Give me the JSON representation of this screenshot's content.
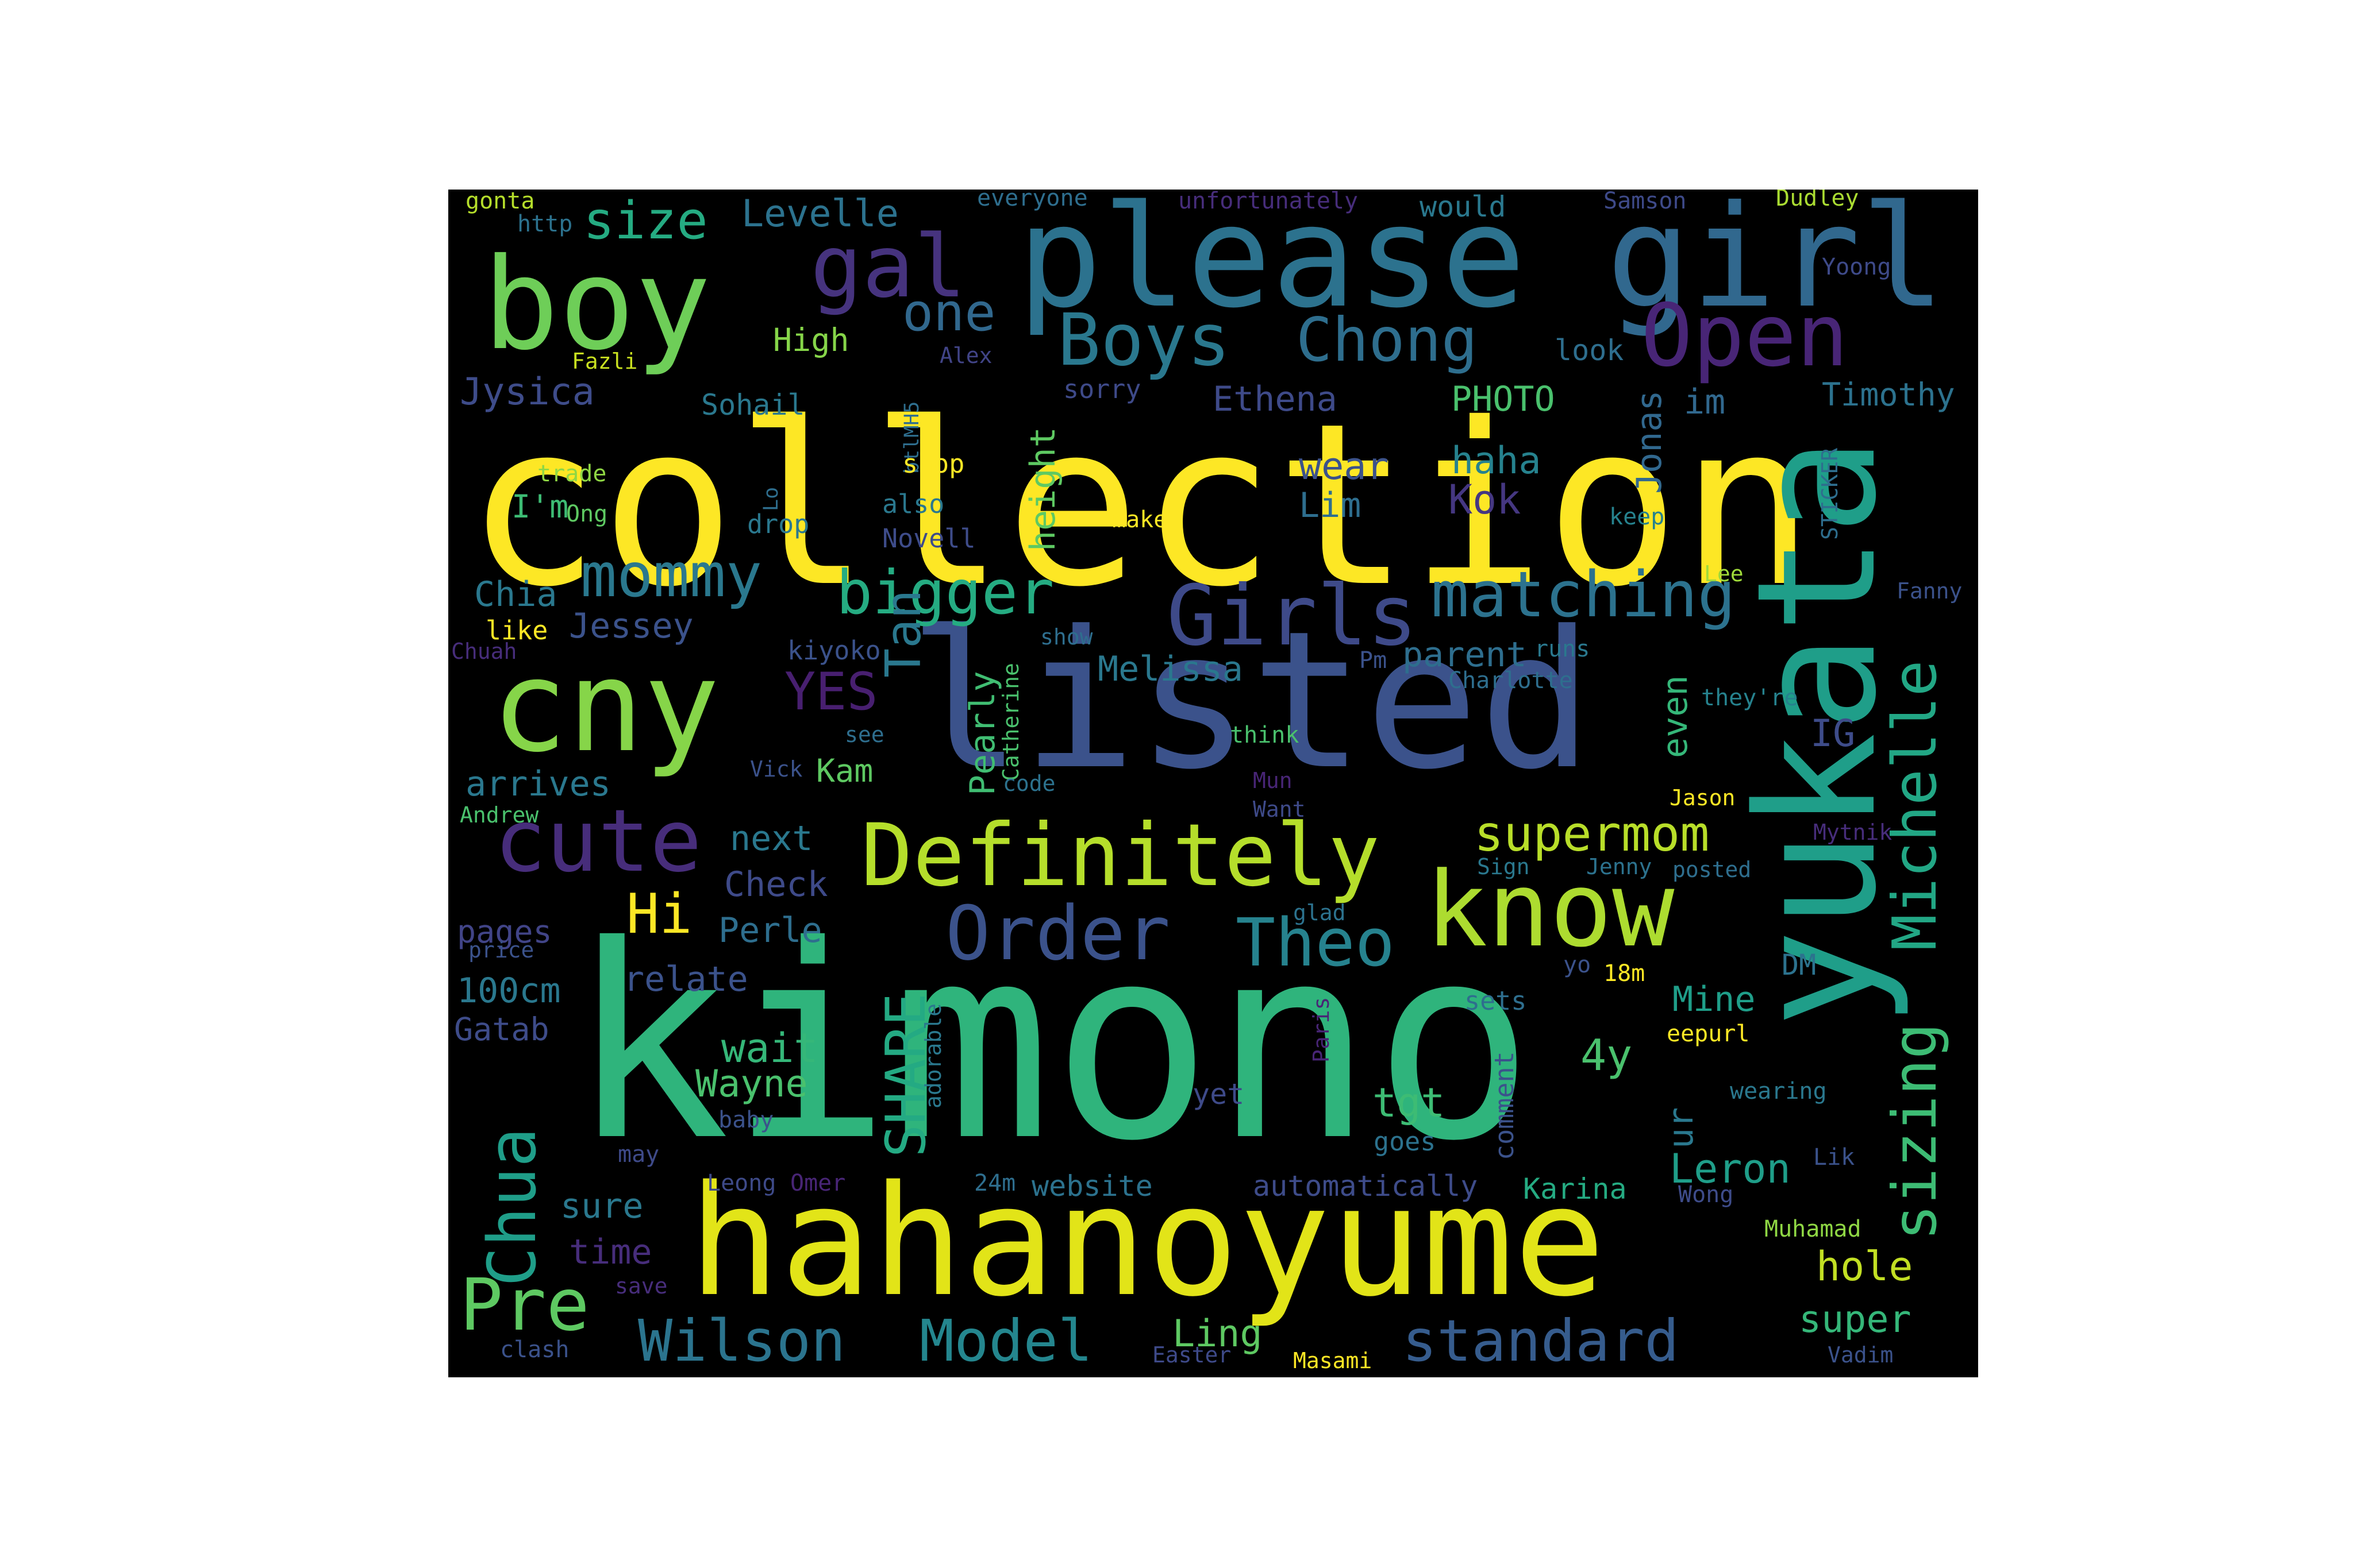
{
  "words": [
    {
      "text": "kimono",
      "color": "#2fb47c"
    },
    {
      "text": "collection",
      "color": "#fde725"
    },
    {
      "text": "listed",
      "color": "#3b528b"
    },
    {
      "text": "yukata",
      "color": "#1f9e89"
    },
    {
      "text": "hahanoyume",
      "color": "#e2e418"
    },
    {
      "text": "please",
      "color": "#2c728e"
    },
    {
      "text": "girl",
      "color": "#31688e"
    },
    {
      "text": "boy",
      "color": "#6ece58"
    },
    {
      "text": "cny",
      "color": "#86d549"
    },
    {
      "text": "know",
      "color": "#addc30"
    },
    {
      "text": "Definitely",
      "color": "#b5de2b"
    },
    {
      "text": "cute",
      "color": "#472d7b"
    },
    {
      "text": "Girls",
      "color": "#3e4a89"
    },
    {
      "text": "Open",
      "color": "#482576"
    },
    {
      "text": "gal",
      "color": "#46337e"
    },
    {
      "text": "Boys",
      "color": "#2a788e"
    },
    {
      "text": "Chong",
      "color": "#2e6e8e"
    },
    {
      "text": "Order",
      "color": "#3b528b"
    },
    {
      "text": "Theo",
      "color": "#26828e"
    },
    {
      "text": "Michelle",
      "color": "#22a785"
    },
    {
      "text": "sizing",
      "color": "#3dbc74"
    },
    {
      "text": "matching",
      "color": "#2c728e"
    },
    {
      "text": "mommy",
      "color": "#2a788e"
    },
    {
      "text": "bigger",
      "color": "#25ac82"
    },
    {
      "text": "Chua",
      "color": "#1f9e89"
    },
    {
      "text": "SHARE",
      "color": "#24aa83"
    },
    {
      "text": "Pre",
      "color": "#5ec962"
    },
    {
      "text": "Wilson",
      "color": "#2b748e"
    },
    {
      "text": "Model",
      "color": "#24868e"
    },
    {
      "text": "standard",
      "color": "#365c8d"
    },
    {
      "text": "supermom",
      "color": "#b8de29"
    },
    {
      "text": "Tan",
      "color": "#2a788e"
    },
    {
      "text": "one",
      "color": "#31688e"
    },
    {
      "text": "size",
      "color": "#25ab82"
    },
    {
      "text": "Levelle",
      "color": "#2c728e"
    },
    {
      "text": "YES",
      "color": "#481f70"
    },
    {
      "text": "Hi",
      "color": "#fde725"
    },
    {
      "text": "height",
      "color": "#5ec962"
    },
    {
      "text": "Pearly",
      "color": "#40bd72"
    },
    {
      "text": "Jonas",
      "color": "#31688e"
    },
    {
      "text": "even",
      "color": "#35b779"
    },
    {
      "text": "IG",
      "color": "#3e4c8a"
    },
    {
      "text": "4y",
      "color": "#4ac16d"
    },
    {
      "text": "ur",
      "color": "#2a788e"
    },
    {
      "text": "Leron",
      "color": "#1f9e89"
    },
    {
      "text": "hole",
      "color": "#c2df23"
    },
    {
      "text": "super",
      "color": "#35b779"
    },
    {
      "text": "Ling",
      "color": "#5ec962"
    },
    {
      "text": "tgt",
      "color": "#3dbc74"
    },
    {
      "text": "wait",
      "color": "#35b779"
    },
    {
      "text": "Wayne",
      "color": "#4ac16d"
    },
    {
      "text": "Kok",
      "color": "#453781"
    },
    {
      "text": "haha",
      "color": "#26828e"
    },
    {
      "text": "wear",
      "color": "#3b528b"
    },
    {
      "text": "Lim",
      "color": "#2e6e8e"
    },
    {
      "text": "Ethena",
      "color": "#3e4a89"
    },
    {
      "text": "PHOTO",
      "color": "#4ac16d"
    },
    {
      "text": "im",
      "color": "#31688e"
    },
    {
      "text": "Timothy",
      "color": "#2c728e"
    },
    {
      "text": "Jysica",
      "color": "#3e4c8a"
    },
    {
      "text": "Sohail",
      "color": "#2a788e"
    },
    {
      "text": "High",
      "color": "#86d549"
    },
    {
      "text": "Chia",
      "color": "#2a788e"
    },
    {
      "text": "Jessey",
      "color": "#3b528b"
    },
    {
      "text": "arrives",
      "color": "#2a788e"
    },
    {
      "text": "next",
      "color": "#2a788e"
    },
    {
      "text": "Check",
      "color": "#3e4a89"
    },
    {
      "text": "Perle",
      "color": "#2e6e8e"
    },
    {
      "text": "pages",
      "color": "#414487"
    },
    {
      "text": "relate",
      "color": "#3b528b"
    },
    {
      "text": "100cm",
      "color": "#2a788e"
    },
    {
      "text": "Gatab",
      "color": "#3e4c8a"
    },
    {
      "text": "sure",
      "color": "#2a788e"
    },
    {
      "text": "time",
      "color": "#472d7b"
    },
    {
      "text": "Kam",
      "color": "#5ec962"
    },
    {
      "text": "kiyoko",
      "color": "#3b528b"
    },
    {
      "text": "Melissa",
      "color": "#2a788e"
    },
    {
      "text": "parent",
      "color": "#2e6e8e"
    },
    {
      "text": "Mine",
      "color": "#1f9e89"
    },
    {
      "text": "DM",
      "color": "#2c728e"
    },
    {
      "text": "automatically",
      "color": "#3e4c8a"
    },
    {
      "text": "Karina",
      "color": "#25ab82"
    },
    {
      "text": "website",
      "color": "#2c728e"
    },
    {
      "text": "I'm",
      "color": "#3dbc74"
    },
    {
      "text": "look",
      "color": "#2e6e8e"
    },
    {
      "text": "would",
      "color": "#2a788e"
    },
    {
      "text": "sets",
      "color": "#2e6e8e"
    },
    {
      "text": "goes",
      "color": "#2c728e"
    },
    {
      "text": "comment",
      "color": "#3b528b"
    },
    {
      "text": "gonta",
      "color": "#b5de2b"
    },
    {
      "text": "http",
      "color": "#2c728e"
    },
    {
      "text": "everyone",
      "color": "#2e6e8e"
    },
    {
      "text": "unfortunately",
      "color": "#472d7b"
    },
    {
      "text": "Samson",
      "color": "#3e4a89"
    },
    {
      "text": "Dudley",
      "color": "#aadc32"
    },
    {
      "text": "Yoong",
      "color": "#3e4a89"
    },
    {
      "text": "Fazli",
      "color": "#c8e020"
    },
    {
      "text": "btlMH5",
      "color": "#2e6e8e"
    },
    {
      "text": "Alex",
      "color": "#414487"
    },
    {
      "text": "sorry",
      "color": "#3e4a89"
    },
    {
      "text": "shop",
      "color": "#fde725"
    },
    {
      "text": "trade",
      "color": "#8fd744"
    },
    {
      "text": "Ong",
      "color": "#5ec962"
    },
    {
      "text": "Lo",
      "color": "#2e6e8e"
    },
    {
      "text": "drop",
      "color": "#2a788e"
    },
    {
      "text": "also",
      "color": "#2a788e"
    },
    {
      "text": "Novell",
      "color": "#3e4c8a"
    },
    {
      "text": "make",
      "color": "#fde725"
    },
    {
      "text": "keep",
      "color": "#26828e"
    },
    {
      "text": "STICKER",
      "color": "#2e6e8e"
    },
    {
      "text": "Lee",
      "color": "#9fda3a"
    },
    {
      "text": "Fanny",
      "color": "#3b528b"
    },
    {
      "text": "like",
      "color": "#fde725"
    },
    {
      "text": "Chuah",
      "color": "#472d7b"
    },
    {
      "text": "show",
      "color": "#2e6e8e"
    },
    {
      "text": "Catherine",
      "color": "#4ac16d"
    },
    {
      "text": "Pm",
      "color": "#3b528b"
    },
    {
      "text": "runs",
      "color": "#2a788e"
    },
    {
      "text": "Charlotte",
      "color": "#2e6e8e"
    },
    {
      "text": "they're",
      "color": "#26828e"
    },
    {
      "text": "think",
      "color": "#4ac16d"
    },
    {
      "text": "see",
      "color": "#2e6e8e"
    },
    {
      "text": "Vick",
      "color": "#3b528b"
    },
    {
      "text": "code",
      "color": "#2c728e"
    },
    {
      "text": "Mun",
      "color": "#482576"
    },
    {
      "text": "Want",
      "color": "#3e4a89"
    },
    {
      "text": "Jason",
      "color": "#fde725"
    },
    {
      "text": "Mytnik",
      "color": "#472d7b"
    },
    {
      "text": "Andrew",
      "color": "#4ac16d"
    },
    {
      "text": "Sign",
      "color": "#2a788e"
    },
    {
      "text": "Jenny",
      "color": "#2c728e"
    },
    {
      "text": "posted",
      "color": "#2e6e8e"
    },
    {
      "text": "glad",
      "color": "#2c728e"
    },
    {
      "text": "price",
      "color": "#3b528b"
    },
    {
      "text": "yo",
      "color": "#3b528b"
    },
    {
      "text": "18m",
      "color": "#fde725"
    },
    {
      "text": "Paris",
      "color": "#482576"
    },
    {
      "text": "adorable",
      "color": "#2a788e"
    },
    {
      "text": "eepurl",
      "color": "#fde725"
    },
    {
      "text": "wearing",
      "color": "#2a788e"
    },
    {
      "text": "yet",
      "color": "#3e4a89"
    },
    {
      "text": "baby",
      "color": "#3b528b"
    },
    {
      "text": "may",
      "color": "#3e4a89"
    },
    {
      "text": "Leong",
      "color": "#3e4a89"
    },
    {
      "text": "Omer",
      "color": "#482576"
    },
    {
      "text": "24m",
      "color": "#2e6e8e"
    },
    {
      "text": "Wong",
      "color": "#3e4c8a"
    },
    {
      "text": "Lik",
      "color": "#3b528b"
    },
    {
      "text": "Muhamad",
      "color": "#8fd744"
    },
    {
      "text": "save",
      "color": "#472d7b"
    },
    {
      "text": "clash",
      "color": "#3b528b"
    },
    {
      "text": "Easter",
      "color": "#3e4a89"
    },
    {
      "text": "Masami",
      "color": "#fde725"
    },
    {
      "text": "Vadim",
      "color": "#3b528b"
    }
  ]
}
